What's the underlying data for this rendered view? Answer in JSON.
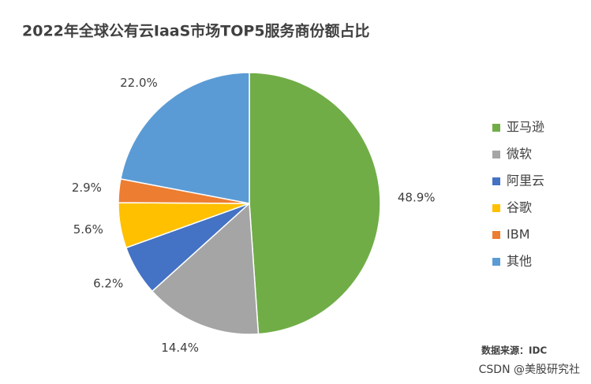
{
  "chart_data": {
    "type": "pie",
    "title": "2022年全球公有云IaaS市场TOP5服务商份额占比",
    "categories": [
      "亚马逊",
      "微软",
      "阿里云",
      "谷歌",
      "IBM",
      "其他"
    ],
    "values": [
      48.9,
      14.4,
      6.2,
      5.6,
      2.9,
      22.0
    ],
    "value_labels": [
      "48.9%",
      "14.4%",
      "6.2%",
      "5.6%",
      "2.9%",
      "22.0%"
    ],
    "colors": [
      "#70ad47",
      "#a5a5a5",
      "#4472c4",
      "#ffc000",
      "#ed7d31",
      "#5b9bd5"
    ],
    "legend": "right",
    "source": "数据来源：IDC",
    "watermark": "CSDN @美股研究社"
  }
}
